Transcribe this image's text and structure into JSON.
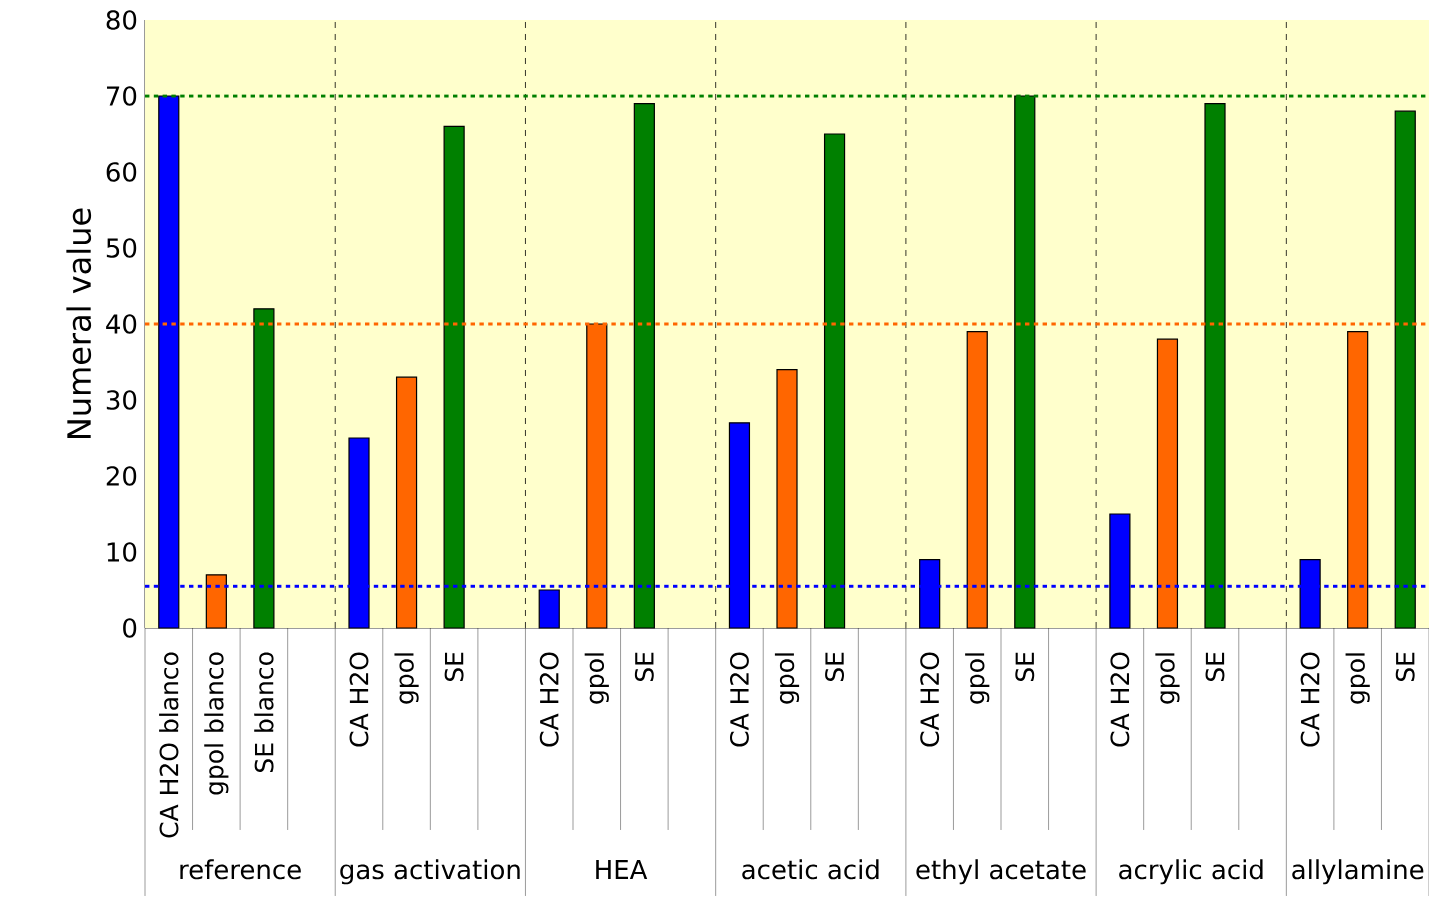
{
  "chart_data": {
    "type": "bar",
    "ylabel": "Numeral value",
    "categories": [
      "CA H2O blanco",
      "gpol blanco",
      "SE blanco",
      null,
      "CA H2O",
      "gpol",
      "SE",
      null,
      "CA H2O",
      "gpol",
      "SE",
      null,
      "CA H2O",
      "gpol",
      "SE",
      null,
      "CA H2O",
      "gpol",
      "SE",
      null,
      "CA H2O",
      "gpol",
      "SE",
      null,
      "CA H2O",
      "gpol",
      "SE"
    ],
    "values": [
      70,
      7,
      42,
      null,
      25,
      33,
      66,
      null,
      5,
      40,
      69,
      null,
      27,
      34,
      65,
      null,
      9,
      39,
      70,
      null,
      15,
      38,
      69,
      null,
      9,
      39,
      68
    ],
    "colors": [
      "#0000ff",
      "#ff6600",
      "#008000",
      null,
      "#0000ff",
      "#ff6600",
      "#008000",
      null,
      "#0000ff",
      "#ff6600",
      "#008000",
      null,
      "#0000ff",
      "#ff6600",
      "#008000",
      null,
      "#0000ff",
      "#ff6600",
      "#008000",
      null,
      "#0000ff",
      "#ff6600",
      "#008000",
      null,
      "#0000ff",
      "#ff6600",
      "#008000"
    ],
    "ylim": [
      0,
      80
    ],
    "yticks": [
      0,
      10,
      20,
      30,
      40,
      50,
      60,
      70,
      80
    ],
    "ref_lines": [
      {
        "axis": "y",
        "value": 70,
        "color": "#008000",
        "line_style": "dotted"
      },
      {
        "axis": "y",
        "value": 40,
        "color": "#ff6600",
        "line_style": "dotted"
      },
      {
        "axis": "y",
        "value": 5.5,
        "color": "#0000ff",
        "line_style": "dotted"
      }
    ],
    "annotations": [
      "reference",
      "gas activation",
      "HEA",
      "acetic acid",
      "ethyl acetate",
      "acrylic acid",
      "allylamine"
    ],
    "grid": false
  }
}
